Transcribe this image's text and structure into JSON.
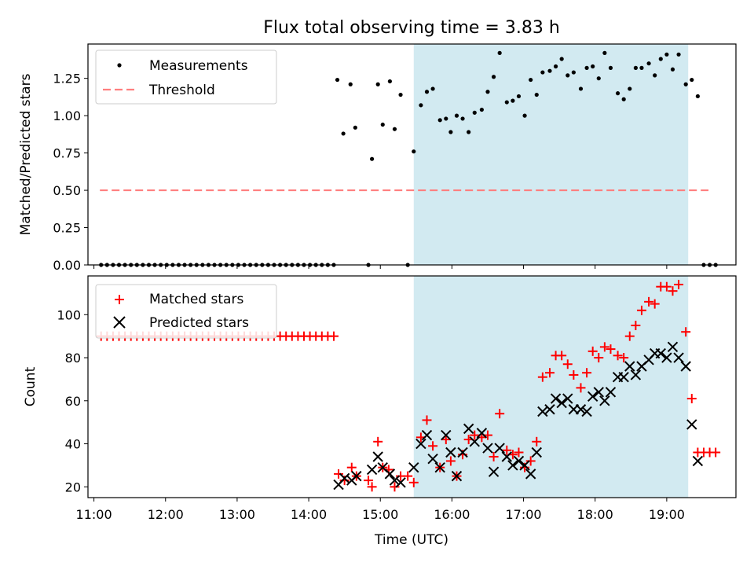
{
  "figure": {
    "title": "Flux total observing time = 3.83 h",
    "xlabel": "Time (UTC)"
  },
  "colors": {
    "shade": "#add8e6",
    "threshold": "#ff7f7f",
    "matched": "#ff0000",
    "predicted": "#000000",
    "measurement": "#000000"
  },
  "chart_data": [
    {
      "type": "scatter",
      "ylabel": "Matched/Predicted stars",
      "xlim": [
        "10:55",
        "19:58"
      ],
      "ylim": [
        0,
        1.48
      ],
      "yticks": [
        "0.00",
        "0.25",
        "0.50",
        "0.75",
        "1.00",
        "1.25"
      ],
      "grid": false,
      "legend_position": "upper-left",
      "shaded_interval": [
        "15:28",
        "19:18"
      ],
      "threshold": {
        "name": "Threshold",
        "value": 0.5,
        "x": [
          "11:05",
          "19:35"
        ]
      },
      "series": [
        {
          "name": "Measurements",
          "points": [
            [
              "11:06",
              0
            ],
            [
              "11:11",
              0
            ],
            [
              "11:16",
              0
            ],
            [
              "11:21",
              0
            ],
            [
              "11:26",
              0
            ],
            [
              "11:31",
              0
            ],
            [
              "11:36",
              0
            ],
            [
              "11:41",
              0
            ],
            [
              "11:46",
              0
            ],
            [
              "11:51",
              0
            ],
            [
              "11:56",
              0
            ],
            [
              "12:01",
              0
            ],
            [
              "12:06",
              0
            ],
            [
              "12:11",
              0
            ],
            [
              "12:16",
              0
            ],
            [
              "12:21",
              0
            ],
            [
              "12:26",
              0
            ],
            [
              "12:31",
              0
            ],
            [
              "12:36",
              0
            ],
            [
              "12:41",
              0
            ],
            [
              "12:46",
              0
            ],
            [
              "12:51",
              0
            ],
            [
              "12:56",
              0
            ],
            [
              "13:01",
              0
            ],
            [
              "13:06",
              0
            ],
            [
              "13:11",
              0
            ],
            [
              "13:16",
              0
            ],
            [
              "13:21",
              0
            ],
            [
              "13:26",
              0
            ],
            [
              "13:31",
              0
            ],
            [
              "13:36",
              0
            ],
            [
              "13:41",
              0
            ],
            [
              "13:46",
              0
            ],
            [
              "13:51",
              0
            ],
            [
              "13:56",
              0
            ],
            [
              "14:01",
              0
            ],
            [
              "14:06",
              0
            ],
            [
              "14:11",
              0
            ],
            [
              "14:16",
              0
            ],
            [
              "14:21",
              0
            ],
            [
              "14:24",
              1.24
            ],
            [
              "14:29",
              0.88
            ],
            [
              "14:35",
              1.21
            ],
            [
              "14:39",
              0.92
            ],
            [
              "14:50",
              0
            ],
            [
              "14:53",
              0.71
            ],
            [
              "14:58",
              1.21
            ],
            [
              "15:02",
              0.94
            ],
            [
              "15:08",
              1.23
            ],
            [
              "15:12",
              0.91
            ],
            [
              "15:17",
              1.14
            ],
            [
              "15:23",
              0
            ],
            [
              "15:28",
              0.76
            ],
            [
              "15:34",
              1.07
            ],
            [
              "15:39",
              1.16
            ],
            [
              "15:44",
              1.18
            ],
            [
              "15:50",
              0.97
            ],
            [
              "15:55",
              0.98
            ],
            [
              "15:59",
              0.89
            ],
            [
              "16:04",
              1.0
            ],
            [
              "16:09",
              0.98
            ],
            [
              "16:14",
              0.89
            ],
            [
              "16:19",
              1.02
            ],
            [
              "16:25",
              1.04
            ],
            [
              "16:30",
              1.16
            ],
            [
              "16:35",
              1.26
            ],
            [
              "16:40",
              1.42
            ],
            [
              "16:46",
              1.09
            ],
            [
              "16:51",
              1.1
            ],
            [
              "16:56",
              1.13
            ],
            [
              "17:01",
              1.0
            ],
            [
              "17:06",
              1.24
            ],
            [
              "17:11",
              1.14
            ],
            [
              "17:16",
              1.29
            ],
            [
              "17:22",
              1.3
            ],
            [
              "17:27",
              1.33
            ],
            [
              "17:32",
              1.38
            ],
            [
              "17:37",
              1.27
            ],
            [
              "17:42",
              1.29
            ],
            [
              "17:48",
              1.18
            ],
            [
              "17:53",
              1.32
            ],
            [
              "17:58",
              1.33
            ],
            [
              "18:03",
              1.25
            ],
            [
              "18:08",
              1.42
            ],
            [
              "18:13",
              1.32
            ],
            [
              "18:19",
              1.15
            ],
            [
              "18:24",
              1.11
            ],
            [
              "18:29",
              1.18
            ],
            [
              "18:34",
              1.32
            ],
            [
              "18:39",
              1.32
            ],
            [
              "18:45",
              1.35
            ],
            [
              "18:50",
              1.27
            ],
            [
              "18:55",
              1.38
            ],
            [
              "19:00",
              1.41
            ],
            [
              "19:05",
              1.31
            ],
            [
              "19:10",
              1.41
            ],
            [
              "19:16",
              1.21
            ],
            [
              "19:21",
              1.24
            ],
            [
              "19:26",
              1.13
            ],
            [
              "19:31",
              0
            ],
            [
              "19:36",
              0
            ],
            [
              "19:41",
              0
            ]
          ]
        }
      ]
    },
    {
      "type": "scatter",
      "ylabel": "Count",
      "xlim": [
        "10:55",
        "19:58"
      ],
      "ylim": [
        15,
        118
      ],
      "yticks": [
        "20",
        "40",
        "60",
        "80",
        "100"
      ],
      "xticks": [
        "11:00",
        "12:00",
        "13:00",
        "14:00",
        "15:00",
        "16:00",
        "17:00",
        "18:00",
        "19:00"
      ],
      "grid": false,
      "legend_position": "upper-left",
      "shaded_interval": [
        "15:28",
        "19:18"
      ],
      "series": [
        {
          "name": "Matched stars",
          "points": [
            [
              "11:06",
              90
            ],
            [
              "11:11",
              90
            ],
            [
              "11:16",
              90
            ],
            [
              "11:21",
              90
            ],
            [
              "11:26",
              90
            ],
            [
              "11:31",
              90
            ],
            [
              "11:36",
              90
            ],
            [
              "11:41",
              90
            ],
            [
              "11:46",
              90
            ],
            [
              "11:51",
              90
            ],
            [
              "11:56",
              90
            ],
            [
              "12:01",
              90
            ],
            [
              "12:06",
              90
            ],
            [
              "12:11",
              90
            ],
            [
              "12:16",
              90
            ],
            [
              "12:21",
              90
            ],
            [
              "12:26",
              90
            ],
            [
              "12:31",
              90
            ],
            [
              "12:36",
              90
            ],
            [
              "12:41",
              90
            ],
            [
              "12:46",
              90
            ],
            [
              "12:51",
              90
            ],
            [
              "12:56",
              90
            ],
            [
              "13:01",
              90
            ],
            [
              "13:06",
              90
            ],
            [
              "13:11",
              90
            ],
            [
              "13:16",
              90
            ],
            [
              "13:21",
              90
            ],
            [
              "13:26",
              90
            ],
            [
              "13:31",
              90
            ],
            [
              "13:36",
              90
            ],
            [
              "13:41",
              90
            ],
            [
              "13:46",
              90
            ],
            [
              "13:51",
              90
            ],
            [
              "13:56",
              90
            ],
            [
              "14:01",
              90
            ],
            [
              "14:06",
              90
            ],
            [
              "14:11",
              90
            ],
            [
              "14:16",
              90
            ],
            [
              "14:21",
              90
            ],
            [
              "14:25",
              26
            ],
            [
              "14:30",
              23
            ],
            [
              "14:36",
              29
            ],
            [
              "14:40",
              25
            ],
            [
              "14:50",
              23
            ],
            [
              "14:53",
              20
            ],
            [
              "14:58",
              41
            ],
            [
              "15:02",
              29
            ],
            [
              "15:07",
              28
            ],
            [
              "15:12",
              20
            ],
            [
              "15:17",
              25
            ],
            [
              "15:23",
              25
            ],
            [
              "15:28",
              22
            ],
            [
              "15:34",
              43
            ],
            [
              "15:39",
              51
            ],
            [
              "15:44",
              39
            ],
            [
              "15:50",
              29
            ],
            [
              "15:55",
              42
            ],
            [
              "15:59",
              32
            ],
            [
              "16:04",
              25
            ],
            [
              "16:09",
              35
            ],
            [
              "16:14",
              42
            ],
            [
              "16:19",
              44
            ],
            [
              "16:25",
              43
            ],
            [
              "16:30",
              44
            ],
            [
              "16:35",
              34
            ],
            [
              "16:40",
              54
            ],
            [
              "16:46",
              37
            ],
            [
              "16:51",
              35
            ],
            [
              "16:56",
              36
            ],
            [
              "17:01",
              29
            ],
            [
              "17:06",
              32
            ],
            [
              "17:11",
              41
            ],
            [
              "17:16",
              71
            ],
            [
              "17:22",
              73
            ],
            [
              "17:27",
              81
            ],
            [
              "17:32",
              81
            ],
            [
              "17:37",
              77
            ],
            [
              "17:42",
              72
            ],
            [
              "17:48",
              66
            ],
            [
              "17:53",
              73
            ],
            [
              "17:58",
              83
            ],
            [
              "18:03",
              80
            ],
            [
              "18:08",
              85
            ],
            [
              "18:13",
              84
            ],
            [
              "18:19",
              81
            ],
            [
              "18:24",
              80
            ],
            [
              "18:29",
              90
            ],
            [
              "18:34",
              95
            ],
            [
              "18:39",
              102
            ],
            [
              "18:45",
              106
            ],
            [
              "18:50",
              105
            ],
            [
              "18:55",
              113
            ],
            [
              "19:00",
              113
            ],
            [
              "19:05",
              111
            ],
            [
              "19:10",
              114
            ],
            [
              "19:16",
              92
            ],
            [
              "19:21",
              61
            ],
            [
              "19:26",
              36
            ],
            [
              "19:31",
              36
            ],
            [
              "19:36",
              36
            ],
            [
              "19:41",
              36
            ]
          ]
        },
        {
          "name": "Predicted stars",
          "points": [
            [
              "14:25",
              21
            ],
            [
              "14:30",
              24
            ],
            [
              "14:36",
              23
            ],
            [
              "14:40",
              25
            ],
            [
              "14:53",
              28
            ],
            [
              "14:58",
              34
            ],
            [
              "15:02",
              29
            ],
            [
              "15:08",
              26
            ],
            [
              "15:12",
              23
            ],
            [
              "15:17",
              22
            ],
            [
              "15:28",
              29
            ],
            [
              "15:34",
              40
            ],
            [
              "15:39",
              44
            ],
            [
              "15:44",
              33
            ],
            [
              "15:50",
              29
            ],
            [
              "15:55",
              44
            ],
            [
              "15:59",
              36
            ],
            [
              "16:04",
              25
            ],
            [
              "16:09",
              36
            ],
            [
              "16:14",
              47
            ],
            [
              "16:19",
              41
            ],
            [
              "16:25",
              45
            ],
            [
              "16:30",
              38
            ],
            [
              "16:35",
              27
            ],
            [
              "16:40",
              38
            ],
            [
              "16:46",
              34
            ],
            [
              "16:51",
              30
            ],
            [
              "16:56",
              32
            ],
            [
              "17:01",
              30
            ],
            [
              "17:06",
              26
            ],
            [
              "17:11",
              36
            ],
            [
              "17:16",
              55
            ],
            [
              "17:22",
              56
            ],
            [
              "17:27",
              61
            ],
            [
              "17:32",
              59
            ],
            [
              "17:37",
              61
            ],
            [
              "17:42",
              56
            ],
            [
              "17:48",
              56
            ],
            [
              "17:53",
              55
            ],
            [
              "17:58",
              62
            ],
            [
              "18:03",
              64
            ],
            [
              "18:08",
              60
            ],
            [
              "18:13",
              64
            ],
            [
              "18:19",
              71
            ],
            [
              "18:24",
              71
            ],
            [
              "18:29",
              76
            ],
            [
              "18:34",
              72
            ],
            [
              "18:39",
              76
            ],
            [
              "18:45",
              79
            ],
            [
              "18:50",
              82
            ],
            [
              "18:55",
              82
            ],
            [
              "19:00",
              80
            ],
            [
              "19:05",
              85
            ],
            [
              "19:10",
              80
            ],
            [
              "19:16",
              76
            ],
            [
              "19:21",
              49
            ],
            [
              "19:26",
              32
            ]
          ]
        }
      ]
    }
  ]
}
